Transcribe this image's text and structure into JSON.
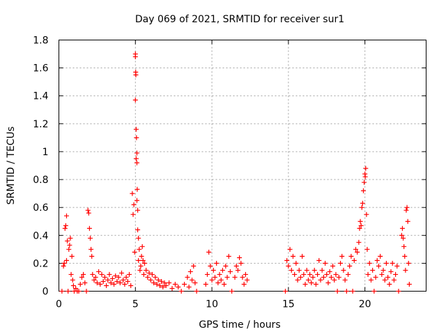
{
  "chart_data": {
    "type": "scatter",
    "title": "Day 069 of 2021, SRMTID for receiver sur1",
    "xlabel": "GPS time / hours",
    "ylabel": "SRMTID / TECUs",
    "xlim": [
      0,
      24
    ],
    "ylim": [
      0,
      1.8
    ],
    "xticks": [
      0,
      5,
      10,
      15,
      20
    ],
    "xtick_labels": [
      "0",
      "5",
      "10",
      "15",
      "20"
    ],
    "yticks": [
      0,
      0.2,
      0.4,
      0.6,
      0.8,
      1.0,
      1.2,
      1.4,
      1.6,
      1.8
    ],
    "ytick_labels": [
      "0",
      "0.2",
      "0.4",
      "0.6",
      "0.8",
      "1",
      "1.2",
      "1.4",
      "1.6",
      "1.8"
    ],
    "grid": true,
    "marker": "plus",
    "color": "#ff0000",
    "series": [
      {
        "name": "sur1",
        "points": [
          [
            0.2,
            0.0
          ],
          [
            0.3,
            0.18
          ],
          [
            0.35,
            0.2
          ],
          [
            0.4,
            0.45
          ],
          [
            0.45,
            0.47
          ],
          [
            0.5,
            0.54
          ],
          [
            0.5,
            0.22
          ],
          [
            0.55,
            0.36
          ],
          [
            0.6,
            0.0
          ],
          [
            0.65,
            0.3
          ],
          [
            0.7,
            0.33
          ],
          [
            0.75,
            0.38
          ],
          [
            0.8,
            0.12
          ],
          [
            0.85,
            0.25
          ],
          [
            0.9,
            0.08
          ],
          [
            0.95,
            0.04
          ],
          [
            1.0,
            0.0
          ],
          [
            1.1,
            0.02
          ],
          [
            1.2,
            0.0
          ],
          [
            1.3,
            0.0
          ],
          [
            1.4,
            0.05
          ],
          [
            1.5,
            0.1
          ],
          [
            1.6,
            0.12
          ],
          [
            1.7,
            0.06
          ],
          [
            1.8,
            0.0
          ],
          [
            1.9,
            0.58
          ],
          [
            1.95,
            0.56
          ],
          [
            2.0,
            0.45
          ],
          [
            2.05,
            0.38
          ],
          [
            2.1,
            0.3
          ],
          [
            2.15,
            0.25
          ],
          [
            2.2,
            0.12
          ],
          [
            2.3,
            0.08
          ],
          [
            2.4,
            0.1
          ],
          [
            2.5,
            0.06
          ],
          [
            2.6,
            0.14
          ],
          [
            2.7,
            0.05
          ],
          [
            2.8,
            0.12
          ],
          [
            2.9,
            0.07
          ],
          [
            3.0,
            0.1
          ],
          [
            3.1,
            0.04
          ],
          [
            3.2,
            0.08
          ],
          [
            3.3,
            0.12
          ],
          [
            3.4,
            0.06
          ],
          [
            3.5,
            0.09
          ],
          [
            3.6,
            0.05
          ],
          [
            3.7,
            0.11
          ],
          [
            3.8,
            0.07
          ],
          [
            3.9,
            0.1
          ],
          [
            4.0,
            0.06
          ],
          [
            4.1,
            0.13
          ],
          [
            4.2,
            0.08
          ],
          [
            4.3,
            0.05
          ],
          [
            4.4,
            0.1
          ],
          [
            4.5,
            0.07
          ],
          [
            4.6,
            0.12
          ],
          [
            4.7,
            0.04
          ],
          [
            4.8,
            0.7
          ],
          [
            4.85,
            0.55
          ],
          [
            4.9,
            0.62
          ],
          [
            4.95,
            0.28
          ],
          [
            5.0,
            1.7
          ],
          [
            5.0,
            1.68
          ],
          [
            5.02,
            1.57
          ],
          [
            5.03,
            1.55
          ],
          [
            5.0,
            1.37
          ],
          [
            5.05,
            1.16
          ],
          [
            5.07,
            1.1
          ],
          [
            5.1,
            0.99
          ],
          [
            5.05,
            0.95
          ],
          [
            5.1,
            0.92
          ],
          [
            5.12,
            0.73
          ],
          [
            5.1,
            0.65
          ],
          [
            5.15,
            0.58
          ],
          [
            5.15,
            0.44
          ],
          [
            5.2,
            0.38
          ],
          [
            5.2,
            0.22
          ],
          [
            5.25,
            0.3
          ],
          [
            5.3,
            0.15
          ],
          [
            5.35,
            0.18
          ],
          [
            5.4,
            0.25
          ],
          [
            5.45,
            0.32
          ],
          [
            5.5,
            0.22
          ],
          [
            5.55,
            0.12
          ],
          [
            5.6,
            0.2
          ],
          [
            5.7,
            0.15
          ],
          [
            5.8,
            0.1
          ],
          [
            5.9,
            0.13
          ],
          [
            6.0,
            0.08
          ],
          [
            6.1,
            0.12
          ],
          [
            6.2,
            0.06
          ],
          [
            6.3,
            0.1
          ],
          [
            6.4,
            0.05
          ],
          [
            6.5,
            0.08
          ],
          [
            6.6,
            0.04
          ],
          [
            6.7,
            0.07
          ],
          [
            6.8,
            0.03
          ],
          [
            6.9,
            0.06
          ],
          [
            7.0,
            0.04
          ],
          [
            7.2,
            0.06
          ],
          [
            7.4,
            0.02
          ],
          [
            7.6,
            0.05
          ],
          [
            7.8,
            0.03
          ],
          [
            8.0,
            0.0
          ],
          [
            8.2,
            0.05
          ],
          [
            8.4,
            0.1
          ],
          [
            8.5,
            0.03
          ],
          [
            8.6,
            0.14
          ],
          [
            8.7,
            0.08
          ],
          [
            8.8,
            0.18
          ],
          [
            8.9,
            0.06
          ],
          [
            9.0,
            0.0
          ],
          [
            9.6,
            0.05
          ],
          [
            9.7,
            0.12
          ],
          [
            9.8,
            0.28
          ],
          [
            9.9,
            0.18
          ],
          [
            10.0,
            0.08
          ],
          [
            10.1,
            0.15
          ],
          [
            10.2,
            0.1
          ],
          [
            10.3,
            0.2
          ],
          [
            10.4,
            0.06
          ],
          [
            10.5,
            0.12
          ],
          [
            10.6,
            0.08
          ],
          [
            10.7,
            0.15
          ],
          [
            10.8,
            0.05
          ],
          [
            10.9,
            0.18
          ],
          [
            11.0,
            0.1
          ],
          [
            11.1,
            0.25
          ],
          [
            11.2,
            0.14
          ],
          [
            11.3,
            0.0
          ],
          [
            11.5,
            0.1
          ],
          [
            11.6,
            0.18
          ],
          [
            11.7,
            0.15
          ],
          [
            11.8,
            0.24
          ],
          [
            11.9,
            0.2
          ],
          [
            12.0,
            0.1
          ],
          [
            12.1,
            0.05
          ],
          [
            12.2,
            0.12
          ],
          [
            12.3,
            0.08
          ],
          [
            14.8,
            0.0
          ],
          [
            14.9,
            0.22
          ],
          [
            15.0,
            0.18
          ],
          [
            15.1,
            0.3
          ],
          [
            15.2,
            0.15
          ],
          [
            15.3,
            0.25
          ],
          [
            15.4,
            0.12
          ],
          [
            15.5,
            0.2
          ],
          [
            15.6,
            0.08
          ],
          [
            15.7,
            0.15
          ],
          [
            15.8,
            0.1
          ],
          [
            15.9,
            0.25
          ],
          [
            16.0,
            0.12
          ],
          [
            16.1,
            0.05
          ],
          [
            16.2,
            0.15
          ],
          [
            16.3,
            0.08
          ],
          [
            16.4,
            0.12
          ],
          [
            16.5,
            0.06
          ],
          [
            16.6,
            0.1
          ],
          [
            16.7,
            0.15
          ],
          [
            16.8,
            0.05
          ],
          [
            16.9,
            0.12
          ],
          [
            17.0,
            0.22
          ],
          [
            17.1,
            0.08
          ],
          [
            17.2,
            0.15
          ],
          [
            17.3,
            0.1
          ],
          [
            17.4,
            0.2
          ],
          [
            17.5,
            0.12
          ],
          [
            17.6,
            0.06
          ],
          [
            17.7,
            0.14
          ],
          [
            17.8,
            0.1
          ],
          [
            17.9,
            0.18
          ],
          [
            18.0,
            0.08
          ],
          [
            18.1,
            0.12
          ],
          [
            18.2,
            0.0
          ],
          [
            18.3,
            0.1
          ],
          [
            18.4,
            0.2
          ],
          [
            18.5,
            0.25
          ],
          [
            18.6,
            0.15
          ],
          [
            18.7,
            0.08
          ],
          [
            18.8,
            0.0
          ],
          [
            18.9,
            0.12
          ],
          [
            19.0,
            0.18
          ],
          [
            19.1,
            0.25
          ],
          [
            19.2,
            0.0
          ],
          [
            19.3,
            0.22
          ],
          [
            19.4,
            0.3
          ],
          [
            19.5,
            0.28
          ],
          [
            19.6,
            0.35
          ],
          [
            19.65,
            0.45
          ],
          [
            19.7,
            0.5
          ],
          [
            19.75,
            0.47
          ],
          [
            19.8,
            0.6
          ],
          [
            19.85,
            0.63
          ],
          [
            19.9,
            0.72
          ],
          [
            19.95,
            0.78
          ],
          [
            20.0,
            0.84
          ],
          [
            20.02,
            0.82
          ],
          [
            20.05,
            0.88
          ],
          [
            20.1,
            0.55
          ],
          [
            20.15,
            0.3
          ],
          [
            20.2,
            0.12
          ],
          [
            20.3,
            0.2
          ],
          [
            20.4,
            0.08
          ],
          [
            20.5,
            0.15
          ],
          [
            20.6,
            0.0
          ],
          [
            20.7,
            0.1
          ],
          [
            20.8,
            0.22
          ],
          [
            20.9,
            0.18
          ],
          [
            21.0,
            0.25
          ],
          [
            21.1,
            0.12
          ],
          [
            21.2,
            0.15
          ],
          [
            21.3,
            0.08
          ],
          [
            21.4,
            0.2
          ],
          [
            21.5,
            0.1
          ],
          [
            21.6,
            0.05
          ],
          [
            21.7,
            0.14
          ],
          [
            21.8,
            0.2
          ],
          [
            21.9,
            0.08
          ],
          [
            22.0,
            0.12
          ],
          [
            22.1,
            0.18
          ],
          [
            22.2,
            0.0
          ],
          [
            22.4,
            0.4
          ],
          [
            22.45,
            0.45
          ],
          [
            22.5,
            0.38
          ],
          [
            22.55,
            0.32
          ],
          [
            22.6,
            0.25
          ],
          [
            22.65,
            0.15
          ],
          [
            22.7,
            0.58
          ],
          [
            22.75,
            0.6
          ],
          [
            22.8,
            0.5
          ],
          [
            22.85,
            0.2
          ],
          [
            22.9,
            0.05
          ]
        ]
      }
    ]
  }
}
